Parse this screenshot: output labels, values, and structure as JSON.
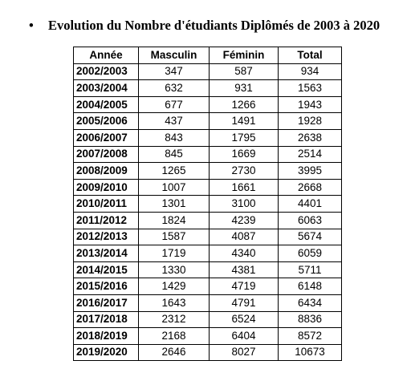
{
  "heading": {
    "bullet": "•",
    "text": "Evolution du Nombre d'étudiants Diplômés de 2003 à 2020"
  },
  "table": {
    "columns": [
      "Année",
      "Masculin",
      "Féminin",
      "Total"
    ],
    "rows": [
      [
        "2002/2003",
        "347",
        "587",
        "934"
      ],
      [
        "2003/2004",
        "632",
        "931",
        "1563"
      ],
      [
        "2004/2005",
        "677",
        "1266",
        "1943"
      ],
      [
        "2005/2006",
        "437",
        "1491",
        "1928"
      ],
      [
        "2006/2007",
        "843",
        "1795",
        "2638"
      ],
      [
        "2007/2008",
        "845",
        "1669",
        "2514"
      ],
      [
        "2008/2009",
        "1265",
        "2730",
        "3995"
      ],
      [
        "2009/2010",
        "1007",
        "1661",
        "2668"
      ],
      [
        "2010/2011",
        "1301",
        "3100",
        "4401"
      ],
      [
        "2011/2012",
        "1824",
        "4239",
        "6063"
      ],
      [
        "2012/2013",
        "1587",
        "4087",
        "5674"
      ],
      [
        "2013/2014",
        "1719",
        "4340",
        "6059"
      ],
      [
        "2014/2015",
        "1330",
        "4381",
        "5711"
      ],
      [
        "2015/2016",
        "1429",
        "4719",
        "6148"
      ],
      [
        "2016/2017",
        "1643",
        "4791",
        "6434"
      ],
      [
        "2017/2018",
        "2312",
        "6524",
        "8836"
      ],
      [
        "2018/2019",
        "2168",
        "6404",
        "8572"
      ],
      [
        "2019/2020",
        "2646",
        "8027",
        "10673"
      ]
    ]
  }
}
